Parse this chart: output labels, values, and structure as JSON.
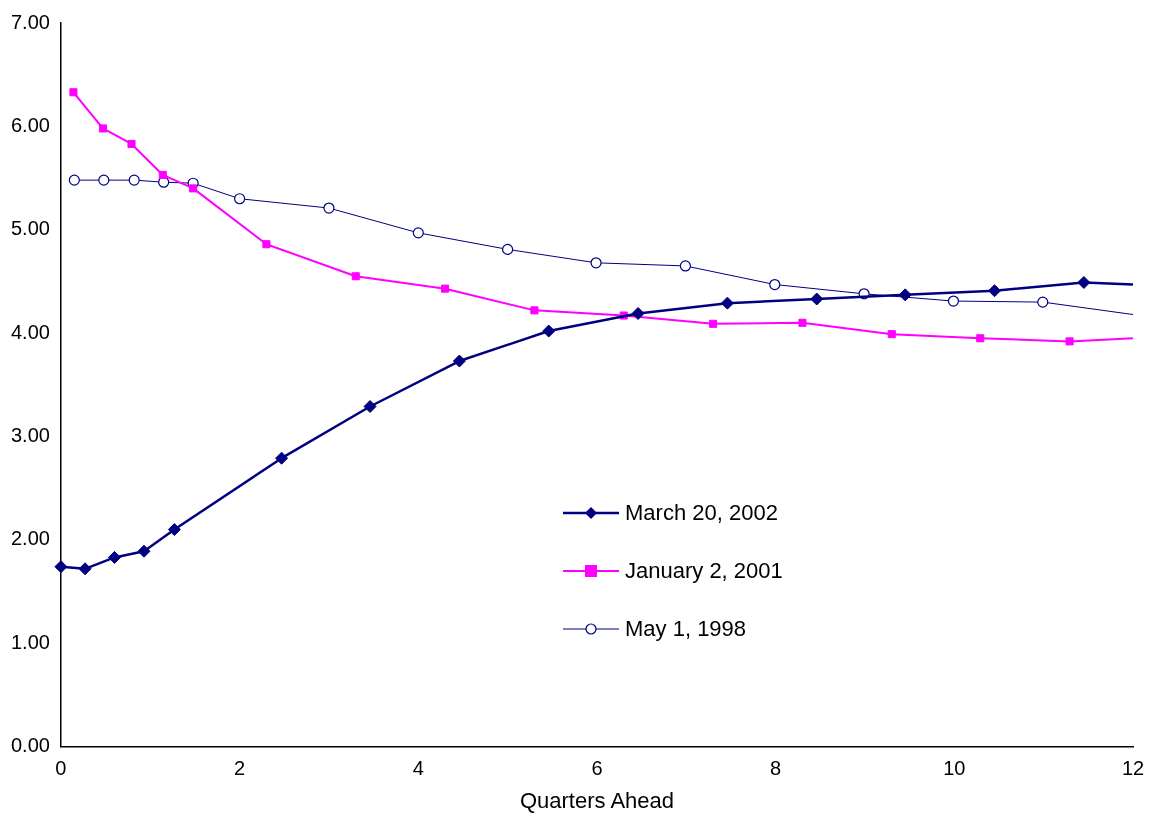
{
  "chart_data": {
    "type": "line",
    "xlabel": "Quarters Ahead",
    "xlim": [
      0,
      12
    ],
    "xticks": [
      0,
      2,
      4,
      6,
      8,
      10,
      12
    ],
    "ylim": [
      0,
      7
    ],
    "yticks": [
      {
        "value": 0,
        "label": "0.00"
      },
      {
        "value": 1,
        "label": "1.00"
      },
      {
        "value": 2,
        "label": "2.00"
      },
      {
        "value": 3,
        "label": "3.00"
      },
      {
        "value": 4,
        "label": "4.00"
      },
      {
        "value": 5,
        "label": "5.00"
      },
      {
        "value": 6,
        "label": "6.00"
      },
      {
        "value": 7,
        "label": "7.00"
      }
    ],
    "grid": false,
    "legend": "right",
    "line_style": "solid",
    "series": [
      {
        "name": "March 20, 2002",
        "color": "#000080",
        "marker": "diamond",
        "x": [
          0,
          0.27,
          0.6,
          0.93,
          1.27,
          2.47,
          3.46,
          4.46,
          5.46,
          6.46,
          7.46,
          8.46,
          9.45,
          10.45,
          11.45,
          12
        ],
        "values": [
          1.74,
          1.72,
          1.83,
          1.89,
          2.1,
          2.79,
          3.29,
          3.73,
          4.02,
          4.19,
          4.29,
          4.33,
          4.37,
          4.41,
          4.49,
          4.47
        ]
      },
      {
        "name": "January 2, 2001",
        "color": "#ff00ff",
        "marker": "square",
        "x": [
          0.14,
          0.47,
          0.79,
          1.14,
          1.48,
          2.3,
          3.3,
          4.3,
          5.3,
          6.3,
          7.3,
          8.3,
          9.3,
          10.29,
          11.29,
          12
        ],
        "values": [
          6.33,
          5.98,
          5.83,
          5.53,
          5.4,
          4.86,
          4.55,
          4.43,
          4.22,
          4.17,
          4.09,
          4.1,
          3.99,
          3.95,
          3.92,
          3.95
        ]
      },
      {
        "name": "May 1, 1998",
        "color": "#000080",
        "marker": "circle",
        "x": [
          0.15,
          0.48,
          0.82,
          1.15,
          1.48,
          2,
          3,
          4,
          5,
          5.99,
          6.99,
          7.99,
          8.99,
          9.99,
          10.99,
          12
        ],
        "values": [
          5.48,
          5.48,
          5.48,
          5.46,
          5.45,
          5.3,
          5.21,
          4.97,
          4.81,
          4.68,
          4.65,
          4.47,
          4.38,
          4.31,
          4.3,
          4.18
        ]
      }
    ]
  }
}
